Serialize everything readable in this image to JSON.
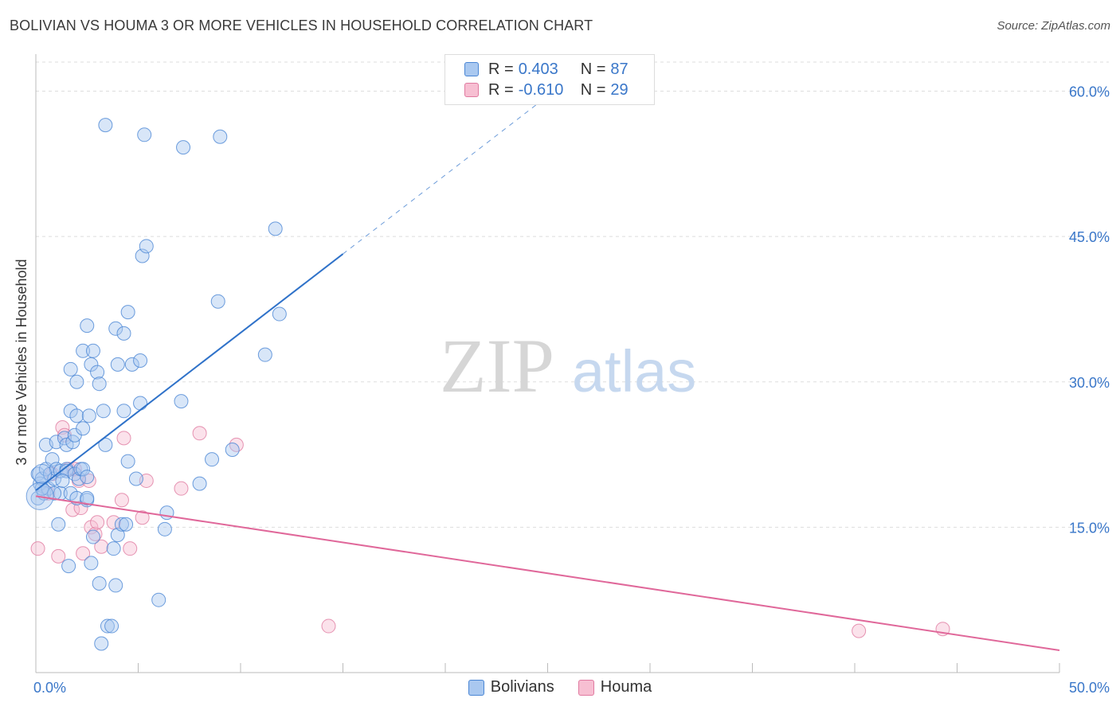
{
  "title": "BOLIVIAN VS HOUMA 3 OR MORE VEHICLES IN HOUSEHOLD CORRELATION CHART",
  "source": "Source: ZipAtlas.com",
  "watermark": {
    "zip": "ZIP",
    "atlas": "atlas"
  },
  "legend": {
    "r_label": "R =",
    "n_label": "N =",
    "rows": [
      {
        "name": "Bolivians",
        "r": "0.403",
        "n": "87",
        "fill": "#a9c8f0",
        "stroke": "#4a86d4"
      },
      {
        "name": "Houma",
        "r": "-0.610",
        "n": "29",
        "fill": "#f7bfd2",
        "stroke": "#e07aa0"
      }
    ]
  },
  "colors": {
    "blue_line": "#2f72c9",
    "pink_line": "#e0689a",
    "axis_text": "#3a77c9",
    "grid": "#dddddd"
  },
  "chart_data": {
    "type": "scatter",
    "title": "BOLIVIAN VS HOUMA 3 OR MORE VEHICLES IN HOUSEHOLD CORRELATION CHART",
    "xlabel": "",
    "ylabel": "3 or more Vehicles in Household",
    "xlim": [
      0,
      50
    ],
    "ylim": [
      0,
      63
    ],
    "x_tick_labels": [
      {
        "value": 0,
        "label": "0.0%"
      },
      {
        "value": 50,
        "label": "50.0%"
      }
    ],
    "y_tick_labels": [
      {
        "value": 15,
        "label": "15.0%"
      },
      {
        "value": 30,
        "label": "30.0%"
      },
      {
        "value": 45,
        "label": "45.0%"
      },
      {
        "value": 60,
        "label": "60.0%"
      }
    ],
    "series": [
      {
        "name": "Bolivians",
        "trend": {
          "x": [
            0,
            15
          ],
          "y": [
            18.8,
            43.2
          ],
          "dashed_to": [
            25,
            59.5
          ]
        },
        "points": [
          [
            0.1,
            20.5
          ],
          [
            0.1,
            18.0
          ],
          [
            0.2,
            19.5
          ],
          [
            0.3,
            20.0
          ],
          [
            0.4,
            18.5
          ],
          [
            0.5,
            21.0
          ],
          [
            0.5,
            23.5
          ],
          [
            0.6,
            19.0
          ],
          [
            0.7,
            20.5
          ],
          [
            0.8,
            22.0
          ],
          [
            0.9,
            20.0
          ],
          [
            1.0,
            23.8
          ],
          [
            1.0,
            21.0
          ],
          [
            1.1,
            15.3
          ],
          [
            1.2,
            18.5
          ],
          [
            1.2,
            20.8
          ],
          [
            1.4,
            24.2
          ],
          [
            1.5,
            23.5
          ],
          [
            1.5,
            21.0
          ],
          [
            1.5,
            20.8
          ],
          [
            1.6,
            11.0
          ],
          [
            1.7,
            18.5
          ],
          [
            1.7,
            27.0
          ],
          [
            1.7,
            31.3
          ],
          [
            1.8,
            23.8
          ],
          [
            1.9,
            24.5
          ],
          [
            1.9,
            20.5
          ],
          [
            2.0,
            26.5
          ],
          [
            2.0,
            18.0
          ],
          [
            2.0,
            30.0
          ],
          [
            2.1,
            20.0
          ],
          [
            2.2,
            21.0
          ],
          [
            2.3,
            25.2
          ],
          [
            2.3,
            33.2
          ],
          [
            2.3,
            21.0
          ],
          [
            2.5,
            17.8
          ],
          [
            2.5,
            20.2
          ],
          [
            2.5,
            18.0
          ],
          [
            2.5,
            35.8
          ],
          [
            2.6,
            26.5
          ],
          [
            2.7,
            11.3
          ],
          [
            2.7,
            31.8
          ],
          [
            2.8,
            33.2
          ],
          [
            2.8,
            14.0
          ],
          [
            3.0,
            31.0
          ],
          [
            3.1,
            29.8
          ],
          [
            3.1,
            9.2
          ],
          [
            3.2,
            3.0
          ],
          [
            3.3,
            27.0
          ],
          [
            3.4,
            23.5
          ],
          [
            3.4,
            56.5
          ],
          [
            3.5,
            4.8
          ],
          [
            3.7,
            4.8
          ],
          [
            3.8,
            12.8
          ],
          [
            3.9,
            9.0
          ],
          [
            3.9,
            35.5
          ],
          [
            4.0,
            31.8
          ],
          [
            4.0,
            14.2
          ],
          [
            4.2,
            15.3
          ],
          [
            4.3,
            35.0
          ],
          [
            4.3,
            27.0
          ],
          [
            4.4,
            15.3
          ],
          [
            4.5,
            21.8
          ],
          [
            4.5,
            37.2
          ],
          [
            4.7,
            31.8
          ],
          [
            4.9,
            20.0
          ],
          [
            5.1,
            27.8
          ],
          [
            5.1,
            32.2
          ],
          [
            5.2,
            43.0
          ],
          [
            5.3,
            55.5
          ],
          [
            5.4,
            44.0
          ],
          [
            6.0,
            7.5
          ],
          [
            6.3,
            14.8
          ],
          [
            6.4,
            16.5
          ],
          [
            7.2,
            54.2
          ],
          [
            7.1,
            28.0
          ],
          [
            8.0,
            19.5
          ],
          [
            8.6,
            22.0
          ],
          [
            8.9,
            38.3
          ],
          [
            9.0,
            55.3
          ],
          [
            9.6,
            23.0
          ],
          [
            11.2,
            32.8
          ],
          [
            11.7,
            45.8
          ],
          [
            11.9,
            37.0
          ],
          [
            0.3,
            19.0
          ],
          [
            0.9,
            18.5
          ],
          [
            1.3,
            19.8
          ]
        ]
      },
      {
        "name": "Houma",
        "trend": {
          "x": [
            0,
            50
          ],
          "y": [
            18.2,
            2.3
          ]
        },
        "points": [
          [
            0.1,
            12.8
          ],
          [
            0.6,
            18.5
          ],
          [
            0.8,
            20.5
          ],
          [
            1.1,
            12.0
          ],
          [
            1.3,
            25.3
          ],
          [
            1.4,
            24.5
          ],
          [
            1.6,
            21.0
          ],
          [
            1.8,
            16.8
          ],
          [
            1.9,
            21.0
          ],
          [
            2.1,
            19.8
          ],
          [
            2.3,
            12.3
          ],
          [
            2.6,
            19.8
          ],
          [
            2.7,
            15.0
          ],
          [
            2.9,
            14.3
          ],
          [
            3.0,
            15.5
          ],
          [
            3.2,
            13.0
          ],
          [
            3.8,
            15.5
          ],
          [
            4.2,
            17.8
          ],
          [
            4.3,
            24.2
          ],
          [
            4.6,
            12.8
          ],
          [
            5.2,
            16.0
          ],
          [
            5.4,
            19.8
          ],
          [
            7.1,
            19.0
          ],
          [
            8.0,
            24.7
          ],
          [
            9.8,
            23.5
          ],
          [
            14.3,
            4.8
          ],
          [
            40.2,
            4.3
          ],
          [
            44.3,
            4.5
          ],
          [
            2.2,
            17.0
          ]
        ]
      }
    ]
  }
}
